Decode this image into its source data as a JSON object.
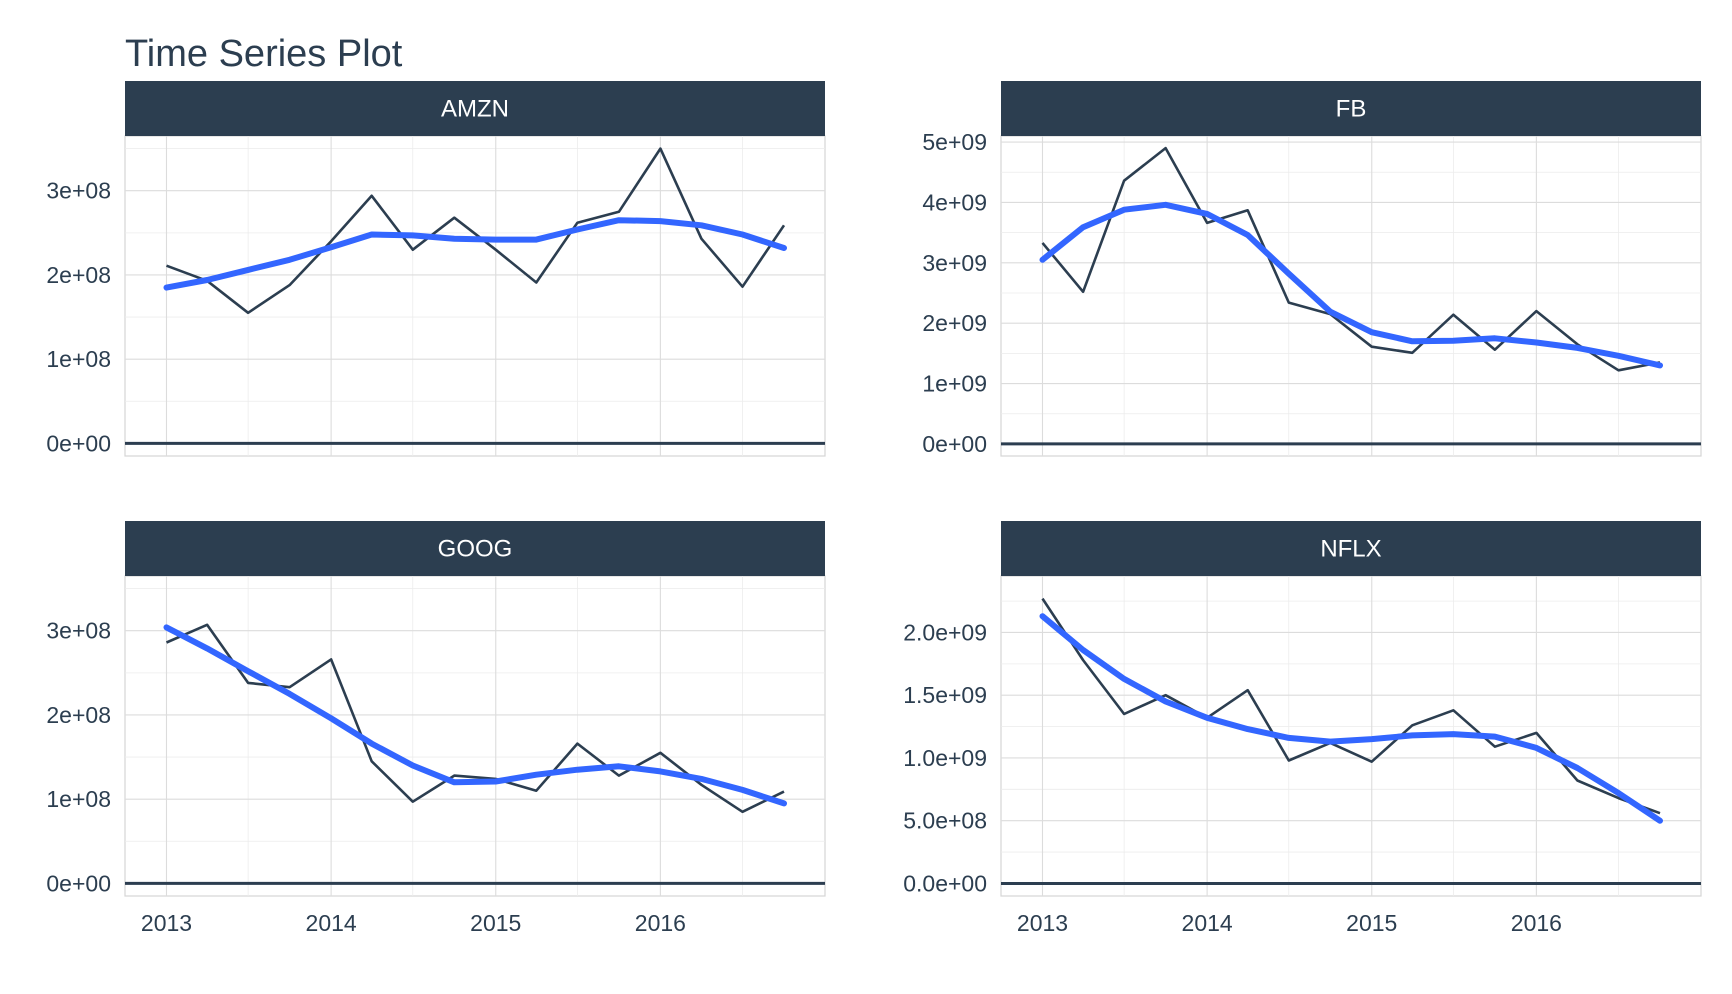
{
  "chart_data": {
    "type": "line",
    "title": "Time Series Plot",
    "x_ticks": [
      "2013",
      "2014",
      "2015",
      "2016"
    ],
    "x_range": [
      "2012-10-01",
      "2016-12-31"
    ],
    "colors": {
      "raw": "#2c3e50",
      "smooth": "#3366ff",
      "strip": "#2c3e50"
    },
    "panels": [
      {
        "name": "AMZN",
        "ylim": [
          -15000000,
          365000000
        ],
        "y_ticks": [
          0,
          100000000,
          200000000,
          300000000
        ],
        "y_tick_labels": [
          "0e+00",
          "1e+08",
          "2e+08",
          "3e+08"
        ],
        "raw": {
          "x": [
            "2013-01-01",
            "2013-04-01",
            "2013-07-01",
            "2013-10-01",
            "2014-01-01",
            "2014-04-01",
            "2014-07-01",
            "2014-10-01",
            "2015-01-01",
            "2015-04-01",
            "2015-07-01",
            "2015-10-01",
            "2016-01-01",
            "2016-04-01",
            "2016-07-01",
            "2016-10-01"
          ],
          "y": [
            211000000,
            193000000,
            155000000,
            188000000,
            240000000,
            294000000,
            230000000,
            268000000,
            230000000,
            191000000,
            262000000,
            275000000,
            350000000,
            243000000,
            186000000,
            259000000
          ]
        },
        "smooth": {
          "x": [
            "2013-01-01",
            "2013-04-01",
            "2013-07-01",
            "2013-10-01",
            "2014-01-01",
            "2014-04-01",
            "2014-07-01",
            "2014-10-01",
            "2015-01-01",
            "2015-04-01",
            "2015-07-01",
            "2015-10-01",
            "2016-01-01",
            "2016-04-01",
            "2016-07-01",
            "2016-10-01"
          ],
          "y": [
            185000000,
            194000000,
            206000000,
            218000000,
            233000000,
            248000000,
            247000000,
            243000000,
            242000000,
            242000000,
            254000000,
            265000000,
            264000000,
            259000000,
            248000000,
            232000000
          ]
        }
      },
      {
        "name": "FB",
        "ylim": [
          -200000000,
          5100000000
        ],
        "y_ticks": [
          0,
          1000000000,
          2000000000,
          3000000000,
          4000000000,
          5000000000
        ],
        "y_tick_labels": [
          "0e+00",
          "1e+09",
          "2e+09",
          "3e+09",
          "4e+09",
          "5e+09"
        ],
        "raw": {
          "x": [
            "2013-01-01",
            "2013-04-01",
            "2013-07-01",
            "2013-10-01",
            "2014-01-01",
            "2014-04-01",
            "2014-07-01",
            "2014-10-01",
            "2015-01-01",
            "2015-04-01",
            "2015-07-01",
            "2015-10-01",
            "2016-01-01",
            "2016-04-01",
            "2016-07-01",
            "2016-10-01"
          ],
          "y": [
            3330000000,
            2520000000,
            4360000000,
            4900000000,
            3660000000,
            3870000000,
            2340000000,
            2150000000,
            1610000000,
            1510000000,
            2140000000,
            1560000000,
            2200000000,
            1650000000,
            1220000000,
            1350000000
          ]
        },
        "smooth": {
          "x": [
            "2013-01-01",
            "2013-04-01",
            "2013-07-01",
            "2013-10-01",
            "2014-01-01",
            "2014-04-01",
            "2014-07-01",
            "2014-10-01",
            "2015-01-01",
            "2015-04-01",
            "2015-07-01",
            "2015-10-01",
            "2016-01-01",
            "2016-04-01",
            "2016-07-01",
            "2016-10-01"
          ],
          "y": [
            3050000000,
            3590000000,
            3880000000,
            3960000000,
            3810000000,
            3460000000,
            2820000000,
            2190000000,
            1850000000,
            1700000000,
            1710000000,
            1750000000,
            1680000000,
            1590000000,
            1460000000,
            1300000000
          ]
        }
      },
      {
        "name": "GOOG",
        "ylim": [
          -15000000,
          365000000
        ],
        "y_ticks": [
          0,
          100000000,
          200000000,
          300000000
        ],
        "y_tick_labels": [
          "0e+00",
          "1e+08",
          "2e+08",
          "3e+08"
        ],
        "raw": {
          "x": [
            "2013-01-01",
            "2013-04-01",
            "2013-07-01",
            "2013-10-01",
            "2014-01-01",
            "2014-04-01",
            "2014-07-01",
            "2014-10-01",
            "2015-01-01",
            "2015-04-01",
            "2015-07-01",
            "2015-10-01",
            "2016-01-01",
            "2016-04-01",
            "2016-07-01",
            "2016-10-01"
          ],
          "y": [
            286000000,
            307000000,
            238000000,
            233000000,
            266000000,
            145000000,
            97000000,
            128000000,
            124000000,
            110000000,
            166000000,
            128000000,
            155000000,
            117000000,
            85000000,
            109000000
          ]
        },
        "smooth": {
          "x": [
            "2013-01-01",
            "2013-04-01",
            "2013-07-01",
            "2013-10-01",
            "2014-01-01",
            "2014-04-01",
            "2014-07-01",
            "2014-10-01",
            "2015-01-01",
            "2015-04-01",
            "2015-07-01",
            "2015-10-01",
            "2016-01-01",
            "2016-04-01",
            "2016-07-01",
            "2016-10-01"
          ],
          "y": [
            304000000,
            279000000,
            252000000,
            225000000,
            196000000,
            166000000,
            140000000,
            120000000,
            121000000,
            129000000,
            135000000,
            139000000,
            133000000,
            124000000,
            111000000,
            95000000
          ]
        }
      },
      {
        "name": "NFLX",
        "ylim": [
          -100000000,
          2450000000
        ],
        "y_ticks": [
          0,
          500000000,
          1000000000,
          1500000000,
          2000000000
        ],
        "y_tick_labels": [
          "0.0e+00",
          "5.0e+08",
          "1.0e+09",
          "1.5e+09",
          "2.0e+09"
        ],
        "raw": {
          "x": [
            "2013-01-01",
            "2013-04-01",
            "2013-07-01",
            "2013-10-01",
            "2014-01-01",
            "2014-04-01",
            "2014-07-01",
            "2014-10-01",
            "2015-01-01",
            "2015-04-01",
            "2015-07-01",
            "2015-10-01",
            "2016-01-01",
            "2016-04-01",
            "2016-07-01",
            "2016-10-01"
          ],
          "y": [
            2270000000,
            1780000000,
            1350000000,
            1500000000,
            1320000000,
            1540000000,
            980000000,
            1120000000,
            970000000,
            1260000000,
            1380000000,
            1090000000,
            1200000000,
            820000000,
            680000000,
            560000000
          ]
        },
        "smooth": {
          "x": [
            "2013-01-01",
            "2013-04-01",
            "2013-07-01",
            "2013-10-01",
            "2014-01-01",
            "2014-04-01",
            "2014-07-01",
            "2014-10-01",
            "2015-01-01",
            "2015-04-01",
            "2015-07-01",
            "2015-10-01",
            "2016-01-01",
            "2016-04-01",
            "2016-07-01",
            "2016-10-01"
          ],
          "y": [
            2130000000,
            1860000000,
            1630000000,
            1450000000,
            1320000000,
            1230000000,
            1160000000,
            1130000000,
            1150000000,
            1180000000,
            1190000000,
            1170000000,
            1080000000,
            920000000,
            720000000,
            500000000
          ]
        }
      }
    ]
  }
}
